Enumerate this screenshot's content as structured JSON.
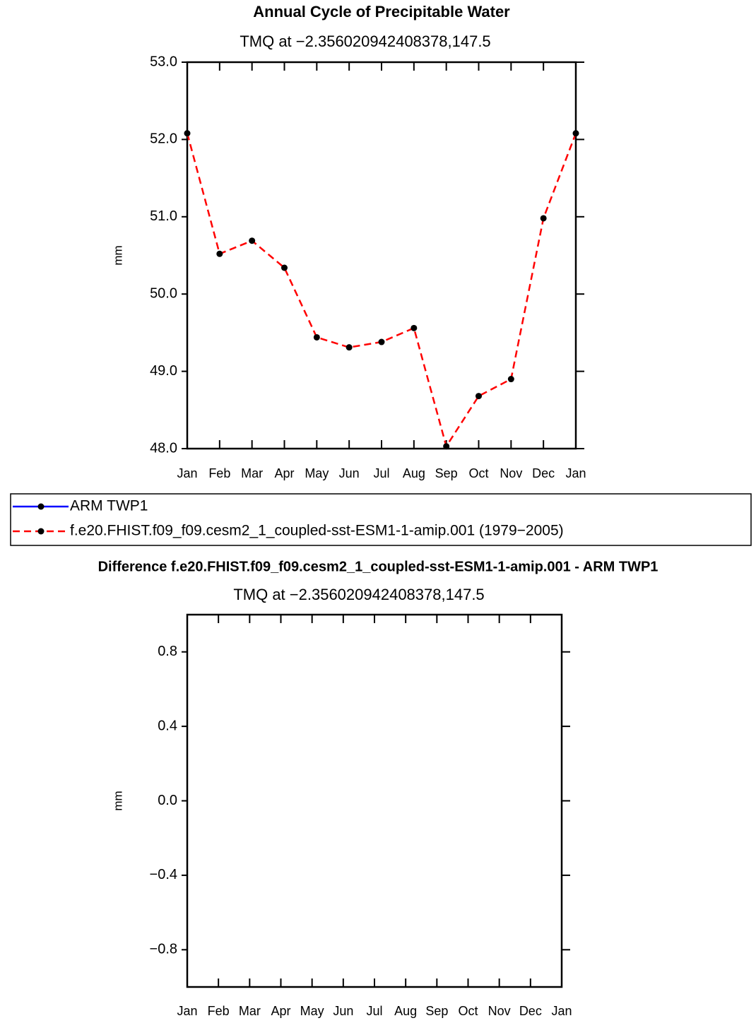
{
  "chart_data": [
    {
      "type": "line",
      "title": "Annual Cycle of Precipitable Water",
      "subtitle": "TMQ at −2.356020942408378,147.5",
      "ylabel": "mm",
      "categories": [
        "Jan",
        "Feb",
        "Mar",
        "Apr",
        "May",
        "Jun",
        "Jul",
        "Aug",
        "Sep",
        "Oct",
        "Nov",
        "Dec",
        "Jan"
      ],
      "series": [
        {
          "name": "ARM TWP1",
          "color": "#0000ff",
          "line_style": "solid",
          "values": [
            null,
            null,
            null,
            null,
            null,
            null,
            null,
            null,
            null,
            null,
            null,
            null,
            null
          ]
        },
        {
          "name": "f.e20.FHIST.f09_f09.cesm2_1_coupled-sst-ESM1-1-amip.001 (1979−2005)",
          "color": "#ff0000",
          "line_style": "dashed",
          "values": [
            52.08,
            50.52,
            50.69,
            50.34,
            49.44,
            49.31,
            49.38,
            49.56,
            48.03,
            48.68,
            48.9,
            50.98,
            52.08
          ]
        }
      ],
      "ylim": [
        48,
        53
      ],
      "yticks": [
        {
          "value": 48,
          "label": "48.0"
        },
        {
          "value": 49,
          "label": "49.0"
        },
        {
          "value": 50,
          "label": "50.0"
        },
        {
          "value": 51,
          "label": "51.0"
        },
        {
          "value": 52,
          "label": "52.0"
        },
        {
          "value": 53,
          "label": "53.0"
        }
      ],
      "legend": "below"
    },
    {
      "type": "line",
      "title": "Difference f.e20.FHIST.f09_f09.cesm2_1_coupled-sst-ESM1-1-amip.001 - ARM TWP1",
      "subtitle": "TMQ at −2.356020942408378,147.5",
      "ylabel": "mm",
      "categories": [
        "Jan",
        "Feb",
        "Mar",
        "Apr",
        "May",
        "Jun",
        "Jul",
        "Aug",
        "Sep",
        "Oct",
        "Nov",
        "Dec",
        "Jan"
      ],
      "ylim": [
        -1,
        1
      ],
      "yticks": [
        {
          "value": -0.8,
          "label": "−0.8"
        },
        {
          "value": -0.4,
          "label": "−0.4"
        },
        {
          "value": 0,
          "label": "0.0"
        },
        {
          "value": 0.4,
          "label": "0.4"
        },
        0.8
      ]
    }
  ]
}
